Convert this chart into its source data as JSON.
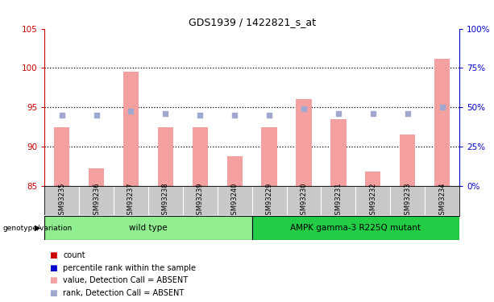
{
  "title": "GDS1939 / 1422821_s_at",
  "samples": [
    "GSM93235",
    "GSM93236",
    "GSM93237",
    "GSM93238",
    "GSM93239",
    "GSM93240",
    "GSM93229",
    "GSM93230",
    "GSM93231",
    "GSM93232",
    "GSM93233",
    "GSM93234"
  ],
  "bar_values": [
    92.5,
    87.2,
    99.5,
    92.5,
    92.5,
    88.8,
    92.5,
    96.0,
    93.5,
    86.8,
    91.5,
    101.2
  ],
  "rank_values": [
    94.0,
    94.0,
    94.5,
    94.2,
    94.0,
    94.0,
    94.0,
    94.8,
    94.2,
    94.2,
    94.2,
    95.0
  ],
  "ylim_left": [
    85,
    105
  ],
  "ylim_right": [
    0,
    100
  ],
  "yticks_left": [
    85,
    90,
    95,
    100,
    105
  ],
  "yticks_right": [
    0,
    25,
    50,
    75,
    100
  ],
  "ytick_labels_right": [
    "0%",
    "25%",
    "50%",
    "75%",
    "100%"
  ],
  "bar_color": "#F4A0A0",
  "rank_color": "#A0A8D0",
  "dotted_lines": [
    90,
    95,
    100
  ],
  "wild_type_color": "#90EE90",
  "mutant_color": "#22CC44",
  "wild_type_label": "wild type",
  "mutant_label": "AMPK gamma-3 R225Q mutant",
  "group_label": "genotype/variation",
  "wild_type_count": 6,
  "mutant_count": 6,
  "legend_items": [
    {
      "label": "count",
      "color": "#CC0000"
    },
    {
      "label": "percentile rank within the sample",
      "color": "#0000CC"
    },
    {
      "label": "value, Detection Call = ABSENT",
      "color": "#F4A0A0"
    },
    {
      "label": "rank, Detection Call = ABSENT",
      "color": "#A0A8D0"
    }
  ],
  "left_axis_color": "#CC0000",
  "right_axis_color": "#0000CC",
  "bg_color": "#FFFFFF",
  "tick_area_color": "#C8C8C8"
}
